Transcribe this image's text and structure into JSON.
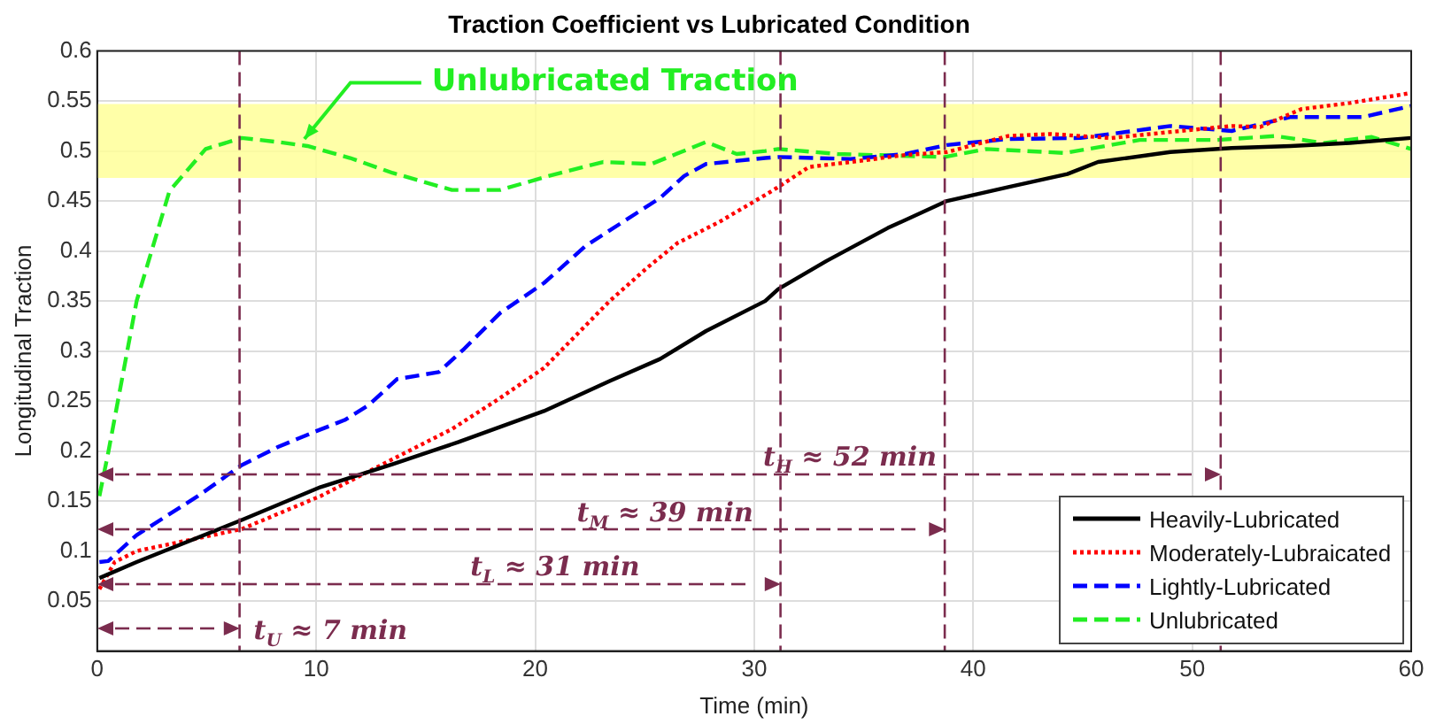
{
  "chart_data": {
    "type": "line",
    "title": "Traction Coefficient vs Lubricated Condition",
    "xlabel": "Time (min)",
    "ylabel": "Longitudinal Traction",
    "xlim": [
      0,
      60
    ],
    "xticks": [
      0,
      10,
      20,
      30,
      40,
      50,
      60
    ],
    "ylim": [
      0,
      0.6
    ],
    "yticks": [
      0.05,
      0.1,
      0.15,
      0.2,
      0.25,
      0.3,
      0.35,
      0.4,
      0.45,
      0.5,
      0.55,
      0.6
    ],
    "grid": true,
    "legend": "bottom right",
    "marker": "none",
    "series": [
      {
        "name": "Heavily-Lubricated",
        "color": "#000000",
        "line_style": "solid",
        "x": [
          0.1,
          1.8,
          6.6,
          10.2,
          13.5,
          16.5,
          20.4,
          23.4,
          25.7,
          27.8,
          30.5,
          31.1,
          33.3,
          36.1,
          38.8,
          41.6,
          44.3,
          45.7,
          49,
          51.8,
          54.5,
          57.2,
          60
        ],
        "values": [
          0.073,
          0.089,
          0.131,
          0.164,
          0.187,
          0.209,
          0.24,
          0.27,
          0.292,
          0.32,
          0.35,
          0.362,
          0.39,
          0.423,
          0.45,
          0.464,
          0.477,
          0.489,
          0.499,
          0.503,
          0.505,
          0.508,
          0.513
        ]
      },
      {
        "name": "Moderately-Lubraicated",
        "color": "#ff0000",
        "line_style": "dotted",
        "x": [
          0.1,
          0.8,
          1.8,
          6.6,
          10.2,
          13.5,
          16.2,
          18.4,
          20.4,
          23.4,
          25.1,
          26.5,
          28.4,
          30.5,
          31.1,
          32.5,
          34.4,
          36.9,
          38.8,
          41.6,
          43.5,
          46.3,
          49,
          51.8,
          53.1,
          55,
          57.2,
          60
        ],
        "values": [
          0.062,
          0.089,
          0.1,
          0.122,
          0.155,
          0.192,
          0.222,
          0.253,
          0.283,
          0.35,
          0.383,
          0.408,
          0.429,
          0.456,
          0.464,
          0.484,
          0.489,
          0.496,
          0.499,
          0.515,
          0.517,
          0.513,
          0.519,
          0.525,
          0.524,
          0.542,
          0.548,
          0.558
        ]
      },
      {
        "name": "Lightly-Lubricated",
        "color": "#0000ff",
        "line_style": "dashed",
        "x": [
          0.1,
          0.5,
          1.8,
          4.6,
          6.6,
          8.25,
          9.9,
          11.3,
          12.4,
          13.7,
          15.6,
          16.7,
          18.4,
          20.4,
          22.3,
          24,
          25.7,
          26.8,
          27.8,
          30.5,
          31.1,
          34.4,
          36.9,
          38.8,
          41.6,
          44.9,
          49,
          51.8,
          54.5,
          57.8,
          60
        ],
        "values": [
          0.089,
          0.09,
          0.116,
          0.155,
          0.186,
          0.204,
          0.219,
          0.231,
          0.246,
          0.272,
          0.279,
          0.301,
          0.338,
          0.368,
          0.405,
          0.429,
          0.453,
          0.475,
          0.487,
          0.493,
          0.494,
          0.492,
          0.497,
          0.506,
          0.512,
          0.513,
          0.525,
          0.52,
          0.534,
          0.534,
          0.545
        ]
      },
      {
        "name": "Unlubricated",
        "color": "#22ee22",
        "line_style": "dashed",
        "x": [
          0.1,
          0.5,
          1.8,
          3.3,
          4.95,
          6.6,
          8.25,
          9.6,
          11.55,
          13.5,
          16.2,
          18.4,
          20.6,
          23.1,
          25.3,
          27.8,
          29.2,
          30.5,
          31.1,
          33.8,
          38.7,
          40.6,
          44.2,
          47.6,
          51.1,
          53.8,
          56,
          58.2,
          60
        ],
        "values": [
          0.155,
          0.198,
          0.35,
          0.46,
          0.502,
          0.513,
          0.509,
          0.505,
          0.493,
          0.478,
          0.461,
          0.461,
          0.475,
          0.489,
          0.487,
          0.509,
          0.497,
          0.5,
          0.502,
          0.497,
          0.494,
          0.502,
          0.498,
          0.511,
          0.511,
          0.515,
          0.508,
          0.514,
          0.502
        ]
      }
    ],
    "bands": [
      {
        "axis": "y",
        "from": 0.473,
        "to": 0.547,
        "color": "#ffff99"
      }
    ],
    "ref_lines": [
      {
        "axis": "x",
        "value": 6.5,
        "color": "#7b2c4e",
        "line_style": "dashed"
      },
      {
        "axis": "x",
        "value": 31.2,
        "color": "#7b2c4e",
        "line_style": "dashed"
      },
      {
        "axis": "x",
        "value": 38.7,
        "color": "#7b2c4e",
        "line_style": "dashed"
      },
      {
        "axis": "x",
        "value": 51.3,
        "color": "#7b2c4e",
        "line_style": "dashed"
      }
    ],
    "annotations": [
      {
        "text": "Unlubricated Traction",
        "x": 9.3,
        "y": 0.505
      },
      "t$_{U}$ ≈ 7 min",
      "t$_{L}$ ≈ 31 min",
      "t$_{M}$ ≈ 39 min",
      "t$_{H}$ ≈ 52 min"
    ]
  }
}
